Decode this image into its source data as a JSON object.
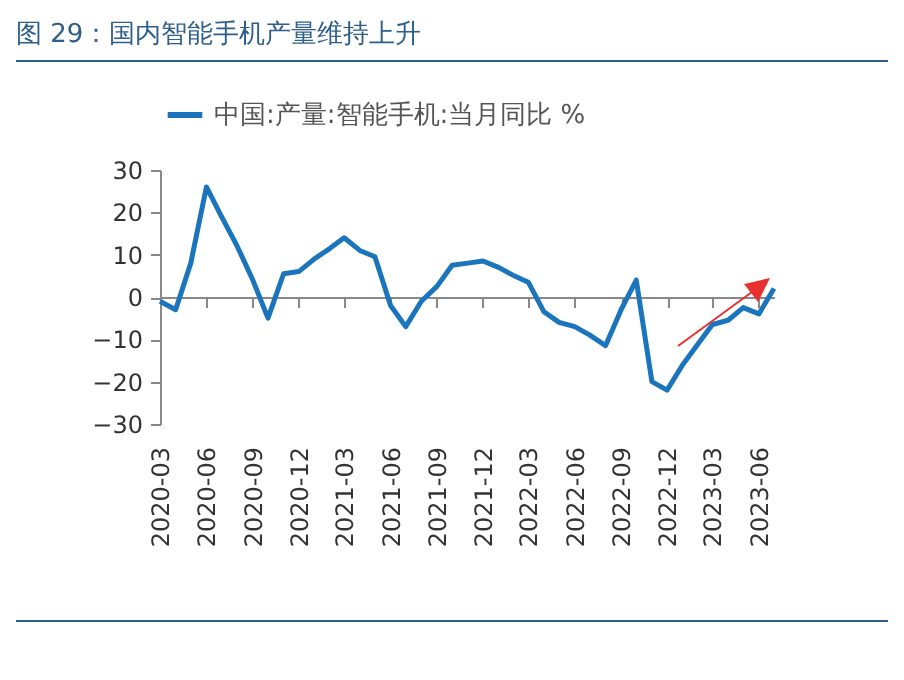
{
  "chart_data": {
    "type": "line",
    "title": "图 29：国内智能手机产量维持上升",
    "x": [
      "2020-03",
      "2020-04",
      "2020-05",
      "2020-06",
      "2020-07",
      "2020-08",
      "2020-09",
      "2020-10",
      "2020-11",
      "2020-12",
      "2021-01",
      "2021-02",
      "2021-03",
      "2021-04",
      "2021-05",
      "2021-06",
      "2021-07",
      "2021-08",
      "2021-09",
      "2021-10",
      "2021-11",
      "2021-12",
      "2022-01",
      "2022-02",
      "2022-03",
      "2022-04",
      "2022-05",
      "2022-06",
      "2022-07",
      "2022-08",
      "2022-09",
      "2022-10",
      "2022-11",
      "2022-12",
      "2023-01",
      "2023-02",
      "2023-03",
      "2023-04",
      "2023-05",
      "2023-06",
      "2023-07"
    ],
    "series": [
      {
        "name": "中国:产量:智能手机:当月同比 %",
        "color": "#1a75bc",
        "values": [
          -1,
          -3,
          8,
          26,
          19,
          12,
          4,
          -5,
          5.5,
          6,
          9,
          11.5,
          14,
          11,
          9.5,
          -2,
          -7,
          -1,
          2.5,
          7.5,
          8,
          8.5,
          7,
          5,
          3.5,
          -3.5,
          -6,
          -7,
          -9,
          -11.5,
          -3,
          4,
          -20,
          -22,
          -16,
          -11,
          -6.5,
          -5.5,
          -2.5,
          -4,
          2
        ]
      }
    ],
    "xlim": [
      "2020-03",
      "2023-07"
    ],
    "xticks": [
      "2020-03",
      "2020-06",
      "2020-09",
      "2020-12",
      "2021-03",
      "2021-06",
      "2021-09",
      "2021-12",
      "2022-03",
      "2022-06",
      "2022-09",
      "2022-12",
      "2023-03",
      "2023-06"
    ],
    "ylim": [
      -30,
      30
    ],
    "yticks": [
      -30,
      -20,
      -10,
      0,
      10,
      20,
      30
    ],
    "legend": "top"
  }
}
